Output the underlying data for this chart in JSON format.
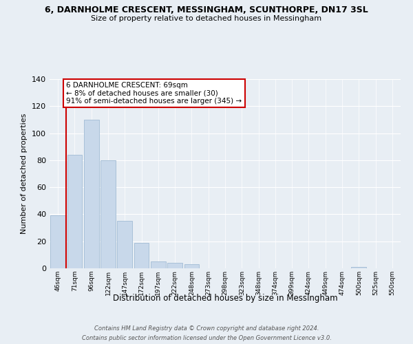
{
  "title": "6, DARNHOLME CRESCENT, MESSINGHAM, SCUNTHORPE, DN17 3SL",
  "subtitle": "Size of property relative to detached houses in Messingham",
  "xlabel": "Distribution of detached houses by size in Messingham",
  "ylabel": "Number of detached properties",
  "bar_labels": [
    "46sqm",
    "71sqm",
    "96sqm",
    "122sqm",
    "147sqm",
    "172sqm",
    "197sqm",
    "222sqm",
    "248sqm",
    "273sqm",
    "298sqm",
    "323sqm",
    "348sqm",
    "374sqm",
    "399sqm",
    "424sqm",
    "449sqm",
    "474sqm",
    "500sqm",
    "525sqm",
    "550sqm"
  ],
  "bar_values": [
    39,
    84,
    110,
    80,
    35,
    19,
    5,
    4,
    3,
    0,
    0,
    0,
    0,
    0,
    0,
    0,
    0,
    0,
    1,
    0,
    0
  ],
  "bar_color": "#c8d8ea",
  "bar_edge_color": "#a8c0d8",
  "highlight_line_color": "#cc0000",
  "ylim": [
    0,
    140
  ],
  "yticks": [
    0,
    20,
    40,
    60,
    80,
    100,
    120,
    140
  ],
  "annotation_line1": "6 DARNHOLME CRESCENT: 69sqm",
  "annotation_line2": "← 8% of detached houses are smaller (30)",
  "annotation_line3": "91% of semi-detached houses are larger (345) →",
  "annotation_box_color": "#ffffff",
  "annotation_box_edge_color": "#cc0000",
  "footnote1": "Contains HM Land Registry data © Crown copyright and database right 2024.",
  "footnote2": "Contains public sector information licensed under the Open Government Licence v3.0.",
  "background_color": "#e8eef4",
  "grid_color": "#ffffff"
}
